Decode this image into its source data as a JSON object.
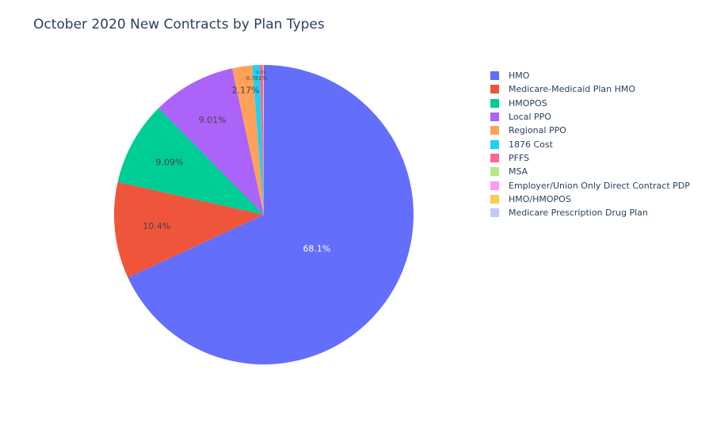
{
  "chart_data": {
    "type": "pie",
    "title": "October 2020 New Contracts by Plan Types",
    "direction": "clockwise",
    "sort": "descending",
    "slices": [
      {
        "label": "HMO",
        "percent": 68.1,
        "percent_label": "68.1%",
        "color": "#636efa"
      },
      {
        "label": "Medicare-Medicaid Plan HMO",
        "percent": 10.4,
        "percent_label": "10.4%",
        "color": "#EF553B"
      },
      {
        "label": "HMOPOS",
        "percent": 9.09,
        "percent_label": "9.09%",
        "color": "#00cc96"
      },
      {
        "label": "Local PPO",
        "percent": 9.01,
        "percent_label": "9.01%",
        "color": "#ab63fa"
      },
      {
        "label": "Regional PPO",
        "percent": 2.17,
        "percent_label": "2.17%",
        "color": "#FFA15A"
      },
      {
        "label": "1876 Cost",
        "percent": 0.781,
        "percent_label": "0.781%",
        "color": "#19d3f3"
      },
      {
        "label": "PFFS",
        "percent": 0.35,
        "percent_label": "0.35%",
        "color": "#FF6692"
      },
      {
        "label": "MSA",
        "percent": 0.05,
        "percent_label": "",
        "color": "#B6E880"
      },
      {
        "label": "Employer/Union Only Direct Contract PDP",
        "percent": 0.03,
        "percent_label": "",
        "color": "#FF97FF"
      },
      {
        "label": "HMO/HMOPOS",
        "percent": 0.01,
        "percent_label": "",
        "color": "#FECB52"
      },
      {
        "label": "Medicare Prescription Drug Plan",
        "percent": 0.0,
        "percent_label": "",
        "color": "#c5c8fa"
      }
    ],
    "legend_position": "right"
  }
}
